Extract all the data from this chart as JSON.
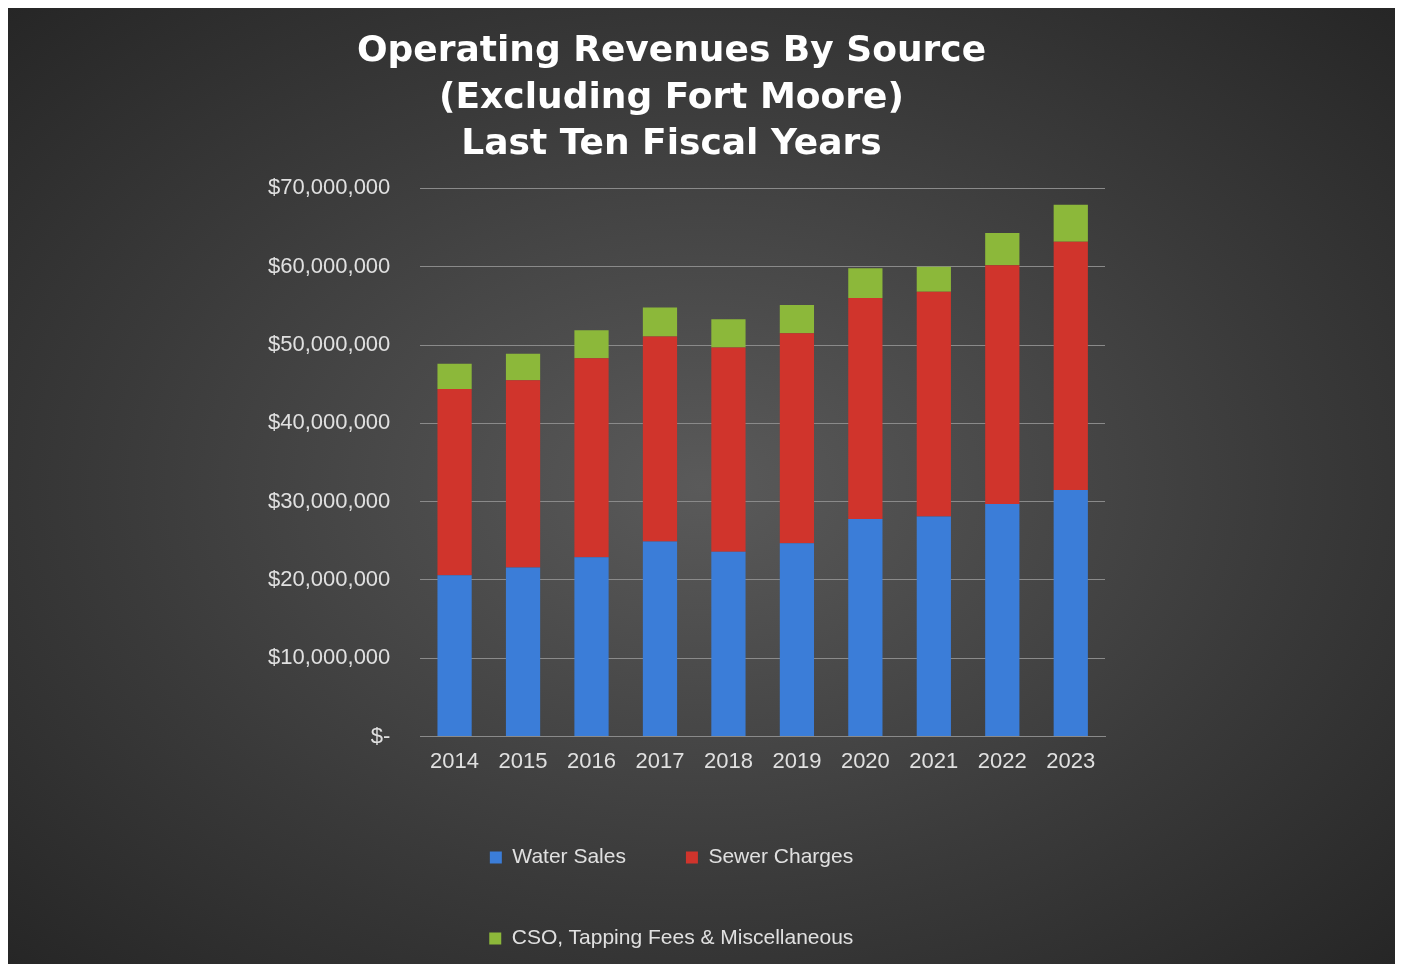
{
  "chart_data": {
    "type": "bar",
    "title": "Operating Revenues By Source\n(Excluding Fort Moore)\nLast Ten Fiscal Years",
    "categories": [
      "2014",
      "2015",
      "2016",
      "2017",
      "2018",
      "2019",
      "2020",
      "2021",
      "2022",
      "2023"
    ],
    "stacked": true,
    "series": [
      {
        "name": "Water Sales",
        "color": "#3b7dd8",
        "values": [
          20600000,
          21600000,
          22900000,
          24900000,
          23600000,
          24700000,
          27800000,
          28100000,
          29700000,
          31500000
        ]
      },
      {
        "name": "Sewer Charges",
        "color": "#d0342c",
        "values": [
          23800000,
          23900000,
          25400000,
          26200000,
          26100000,
          26800000,
          28200000,
          28700000,
          30500000,
          31700000
        ]
      },
      {
        "name": "CSO, Tapping Fees & Miscellaneous",
        "color": "#8cb83a",
        "values": [
          3200000,
          3400000,
          3600000,
          3700000,
          3600000,
          3600000,
          3800000,
          3200000,
          4100000,
          4700000
        ]
      }
    ],
    "ylim": [
      0,
      70000000
    ],
    "yticks": [
      {
        "value": 0,
        "label": "$-"
      },
      {
        "value": 10000000,
        "label": "$10,000,000"
      },
      {
        "value": 20000000,
        "label": "$20,000,000"
      },
      {
        "value": 30000000,
        "label": "$30,000,000"
      },
      {
        "value": 40000000,
        "label": "$40,000,000"
      },
      {
        "value": 50000000,
        "label": "$50,000,000"
      },
      {
        "value": 60000000,
        "label": "$60,000,000"
      },
      {
        "value": 70000000,
        "label": "$70,000,000"
      }
    ],
    "grid": "y",
    "legend": "bottom"
  }
}
